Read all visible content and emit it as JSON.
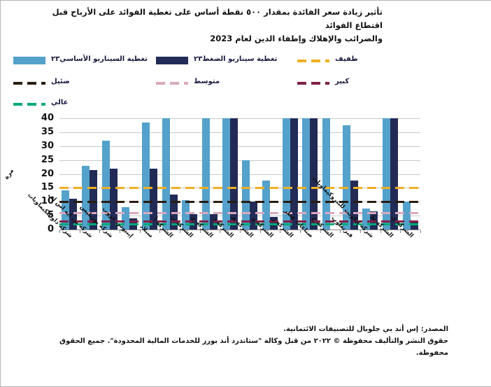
{
  "title": {
    "line1": "تأثير زيادة سعر الفائدة بمقدار ٥٠٠ نقطة أساس على تغطية الفوائد على الأرباح قبل اقتطاع الفوائد",
    "line2": "والضرائب والإهلاك وإطفاء الدين لعام 2023"
  },
  "legend": {
    "items": [
      {
        "label": "تغطية السيناريو الأساسي٢٣",
        "swatch": "box",
        "color": "#54A1CB"
      },
      {
        "label": "تغطية سيناريو الضغط٢٣",
        "swatch": "box",
        "color": "#222B55"
      },
      {
        "label": "طفيف",
        "swatch": "dash",
        "color": "#EFAF24"
      },
      {
        "label": "ضئيل",
        "swatch": "dash",
        "color": "#2A1C10"
      },
      {
        "label": "متوسط",
        "swatch": "dash",
        "color": "#D9A9BE"
      },
      {
        "label": "كبير",
        "swatch": "dash",
        "color": "#7E2146"
      },
      {
        "label": "عالي",
        "swatch": "dash",
        "color": "#00A97B"
      }
    ]
  },
  "chart_data": {
    "type": "bar",
    "ylabel": "مرة",
    "ylim": [
      0,
      40
    ],
    "yticks": [
      0,
      5,
      10,
      15,
      20,
      25,
      30,
      35,
      40
    ],
    "grid": true,
    "categories": [
      "شركة داو للكيماويات",
      "شركة بي ايه اس اف",
      "شركة بوريليس",
      "إينيوس غروب",
      "سبلاد",
      "الشركة أ",
      "الشركة ب",
      "الشركة ج",
      "الشركة د",
      "الشركة هـ",
      "الشركة و",
      "الشركة ز",
      "صناعات قطر",
      "الشركة ح",
      "فيرتغلوب",
      "شركة إيكويت للبتروكيماويات",
      "الشركة ط",
      "الشركة ي"
    ],
    "series": [
      {
        "name": "تغطية السيناريو الأساسي٢٣",
        "color": "#54A1CB",
        "values": [
          14,
          23,
          32,
          8,
          38.5,
          40,
          10.5,
          40,
          40,
          25,
          17.5,
          40,
          40,
          40,
          37.5,
          7.5,
          40,
          10
        ]
      },
      {
        "name": "تغطية سيناريو الضغط٢٣",
        "color": "#222B55",
        "values": [
          11,
          21.5,
          22,
          4,
          22,
          12.5,
          5.5,
          5.5,
          40,
          10,
          4.5,
          40,
          40,
          null,
          17.5,
          6.5,
          40,
          3
        ]
      }
    ],
    "thresholds": [
      {
        "label": "طفيف",
        "value": 15,
        "color": "#EFAF24"
      },
      {
        "label": "ضئيل",
        "value": 10,
        "color": "#2A1C10"
      },
      {
        "label": "متوسط",
        "value": 6,
        "color": "#D9A9BE"
      },
      {
        "label": "كبير",
        "value": 3,
        "color": "#7E2146"
      },
      {
        "label": "عالي",
        "value": 2,
        "color": "#00A97B"
      }
    ],
    "legend_position": "top",
    "values_capped_at": 40
  },
  "footer": {
    "line1": "المصدر: إس أند بي جلوبال للتصنيفات الائتمانية.",
    "line2": "حقوق النشر والتأليف محفوظة © ٢٠٢٢ من قبل وكالة \"ستاندرد أند بورز للخدمات المالية المحدودة\". جميع الحقوق محفوظة."
  }
}
